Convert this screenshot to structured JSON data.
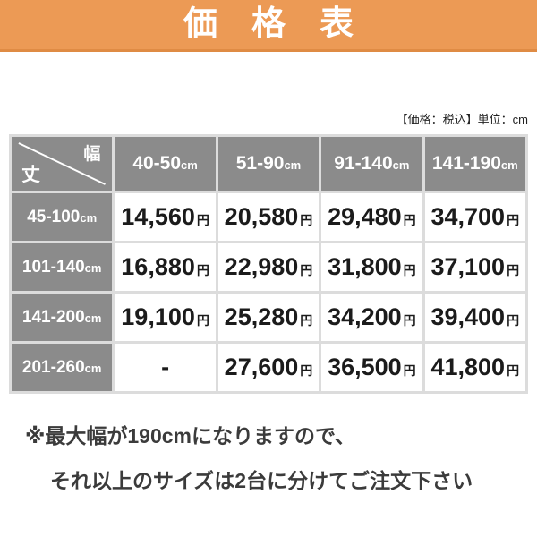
{
  "banner": {
    "title": "価　格　表"
  },
  "note": "【価格：税込】単位：cm",
  "table": {
    "corner": {
      "row_axis": "丈",
      "col_axis": "幅"
    },
    "columns": [
      "40-50",
      "51-90",
      "91-140",
      "141-190"
    ],
    "column_unit": "cm",
    "row_unit": "cm",
    "price_unit": "円",
    "empty_value": "-",
    "rows": [
      {
        "label": "45-100",
        "prices": [
          "14,560",
          "20,580",
          "29,480",
          "34,700"
        ]
      },
      {
        "label": "101-140",
        "prices": [
          "16,880",
          "22,980",
          "31,800",
          "37,100"
        ]
      },
      {
        "label": "141-200",
        "prices": [
          "19,100",
          "25,280",
          "34,200",
          "39,400"
        ]
      },
      {
        "label": "201-260",
        "prices": [
          "-",
          "27,600",
          "36,500",
          "41,800"
        ]
      }
    ]
  },
  "footnote": {
    "line1": "※最大幅が190cmになりますので、",
    "line2": "それ以上のサイズは2台に分けてご注文下さい"
  },
  "colors": {
    "banner_orange": "#EC9A55",
    "banner_border": "#DF8B44",
    "cell_gray": "#8B8B8B",
    "grid_gray": "#DCDCDC",
    "price_text": "#1B1B1B"
  },
  "chart_data": {
    "type": "table",
    "title": "価格表",
    "unit_note": "【価格：税込】単位：cm",
    "col_axis_label": "幅",
    "row_axis_label": "丈",
    "columns": [
      "40-50cm",
      "51-90cm",
      "91-140cm",
      "141-190cm"
    ],
    "rows": [
      "45-100cm",
      "101-140cm",
      "141-200cm",
      "201-260cm"
    ],
    "values_yen": [
      [
        14560,
        20580,
        29480,
        34700
      ],
      [
        16880,
        22980,
        31800,
        37100
      ],
      [
        19100,
        25280,
        34200,
        39400
      ],
      [
        null,
        27600,
        36500,
        41800
      ]
    ],
    "note": "※最大幅が190cmになりますので、それ以上のサイズは2台に分けてご注文下さい"
  }
}
